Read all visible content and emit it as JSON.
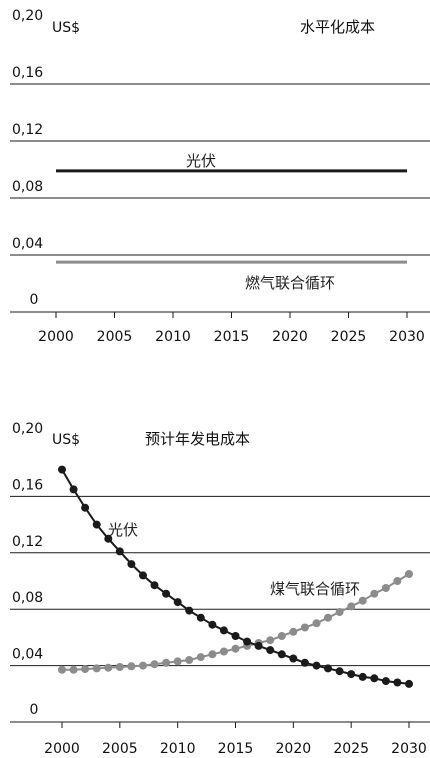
{
  "chart_data": [
    {
      "type": "line",
      "title": "水平化成本",
      "unit": "US$",
      "x_ticks": [
        "2000",
        "2005",
        "2010",
        "2015",
        "2020",
        "2025",
        "2030"
      ],
      "y_ticks": [
        "0",
        "0,04",
        "0,08",
        "0,12",
        "0,16",
        "0,20"
      ],
      "xlim": [
        2000,
        2030
      ],
      "ylim": [
        0,
        0.2
      ],
      "grid": true,
      "series": [
        {
          "name": "光伏",
          "color": "#1a1a1a",
          "x": [
            2000,
            2030
          ],
          "y": [
            0.099,
            0.099
          ]
        },
        {
          "name": "燃气联合循环",
          "color": "#8c8c8c",
          "x": [
            2000,
            2030
          ],
          "y": [
            0.035,
            0.035
          ]
        }
      ]
    },
    {
      "type": "line",
      "title": "预计年发电成本",
      "unit": "US$",
      "x_ticks": [
        "2000",
        "2005",
        "2010",
        "2015",
        "2020",
        "2025",
        "2030"
      ],
      "y_ticks": [
        "0",
        "0,04",
        "0,08",
        "0,12",
        "0,16",
        "0,20"
      ],
      "xlim": [
        2000,
        2030
      ],
      "ylim": [
        0,
        0.2
      ],
      "grid": true,
      "series": [
        {
          "name": "光伏",
          "color": "#1a1a1a",
          "x": [
            2000,
            2001,
            2002,
            2003,
            2004,
            2005,
            2006,
            2007,
            2008,
            2009,
            2010,
            2011,
            2012,
            2013,
            2014,
            2015,
            2016,
            2017,
            2018,
            2019,
            2020,
            2021,
            2022,
            2023,
            2024,
            2025,
            2026,
            2027,
            2028,
            2029,
            2030
          ],
          "y": [
            0.179,
            0.165,
            0.152,
            0.14,
            0.13,
            0.121,
            0.112,
            0.104,
            0.097,
            0.091,
            0.085,
            0.079,
            0.074,
            0.069,
            0.065,
            0.061,
            0.057,
            0.054,
            0.051,
            0.048,
            0.045,
            0.042,
            0.04,
            0.038,
            0.036,
            0.034,
            0.032,
            0.031,
            0.029,
            0.028,
            0.027
          ]
        },
        {
          "name": "煤气联合循环",
          "color": "#8c8c8c",
          "x": [
            2000,
            2001,
            2002,
            2003,
            2004,
            2005,
            2006,
            2007,
            2008,
            2009,
            2010,
            2011,
            2012,
            2013,
            2014,
            2015,
            2016,
            2017,
            2018,
            2019,
            2020,
            2021,
            2022,
            2023,
            2024,
            2025,
            2026,
            2027,
            2028,
            2029,
            2030
          ],
          "y": [
            0.037,
            0.037,
            0.0375,
            0.038,
            0.0385,
            0.039,
            0.0395,
            0.04,
            0.041,
            0.042,
            0.043,
            0.044,
            0.046,
            0.048,
            0.05,
            0.052,
            0.054,
            0.056,
            0.058,
            0.061,
            0.064,
            0.067,
            0.07,
            0.074,
            0.078,
            0.082,
            0.086,
            0.091,
            0.095,
            0.1,
            0.105
          ]
        }
      ]
    }
  ]
}
